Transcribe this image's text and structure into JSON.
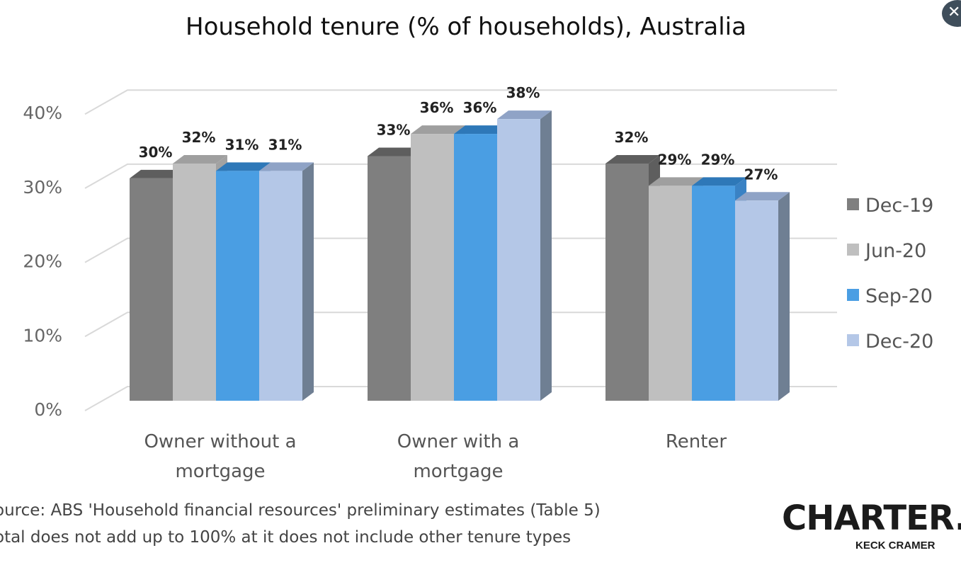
{
  "chart_data": {
    "type": "bar",
    "title": "Household tenure (% of households), Australia",
    "xlabel": "",
    "ylabel": "",
    "ylim": [
      0,
      40
    ],
    "y_ticks": [
      "0%",
      "10%",
      "20%",
      "30%",
      "40%"
    ],
    "grid": true,
    "legend_position": "right",
    "categories": [
      "Owner without a mortgage",
      "Owner with a mortgage",
      "Renter"
    ],
    "series": [
      {
        "name": "Dec-19",
        "values": [
          30,
          33,
          32
        ],
        "labels": [
          "30%",
          "33%",
          "32%"
        ],
        "color": "#7f7f7f",
        "top_color": "#5e5e5e",
        "side_color": "#5e5e5e"
      },
      {
        "name": "Jun-20",
        "values": [
          32,
          36,
          29
        ],
        "labels": [
          "32%",
          "36%",
          "29%"
        ],
        "color": "#bfbfbf",
        "top_color": "#9f9f9f",
        "side_color": "#a2a2a2"
      },
      {
        "name": "Sep-20",
        "values": [
          31,
          36,
          29
        ],
        "labels": [
          "31%",
          "36%",
          "29%"
        ],
        "color": "#4a9ee3",
        "top_color": "#2e78b8",
        "side_color": "#3a82c4"
      },
      {
        "name": "Dec-20",
        "values": [
          31,
          38,
          27
        ],
        "labels": [
          "31%",
          "38%",
          "27%"
        ],
        "color": "#b4c7e7",
        "top_color": "#8fa3c6",
        "side_color": "#6f7f93"
      }
    ]
  },
  "footer": {
    "source": "ource: ABS 'Household financial resources' preliminary estimates (Table 5)",
    "note": "otal does not add up to 100% at it does not include other tenure types"
  },
  "logo": {
    "wordmark": "CHARTER.",
    "subtitle": "KECK CRAMER"
  },
  "close_button": {
    "label": "✕",
    "icon": "close-icon"
  }
}
